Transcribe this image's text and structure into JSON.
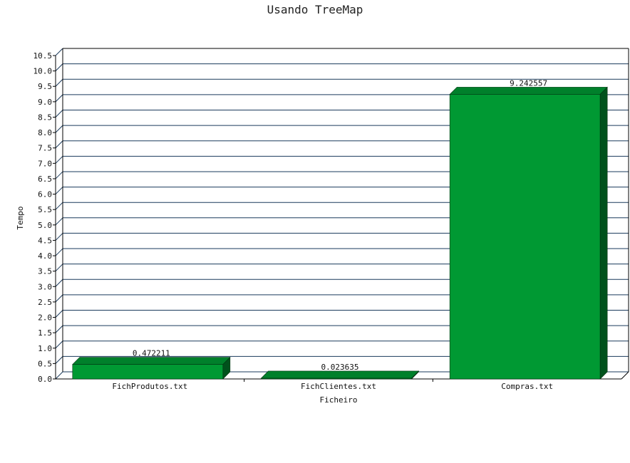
{
  "chart_data": {
    "type": "bar",
    "title": "Usando TreeMap",
    "xlabel": "Ficheiro",
    "ylabel": "Tempo",
    "categories": [
      "FichProdutos.txt",
      "FichClientes.txt",
      "Compras.txt"
    ],
    "values": [
      0.472211,
      0.023635,
      9.242557
    ],
    "value_labels": [
      "0.472211",
      "0.023635",
      "9.242557"
    ],
    "ylim": [
      0,
      10.5
    ],
    "yticks": [
      "0.0",
      "0.5",
      "1.0",
      "1.5",
      "2.0",
      "2.5",
      "3.0",
      "3.5",
      "4.0",
      "4.5",
      "5.0",
      "5.5",
      "6.0",
      "6.5",
      "7.0",
      "7.5",
      "8.0",
      "8.5",
      "9.0",
      "9.5",
      "10.0",
      "10.5"
    ],
    "grid": true,
    "bar_color": "#009933",
    "bar_top_color": "#00802b",
    "bar_side_color": "#00521c",
    "grid_color": "#1a3a5c"
  }
}
